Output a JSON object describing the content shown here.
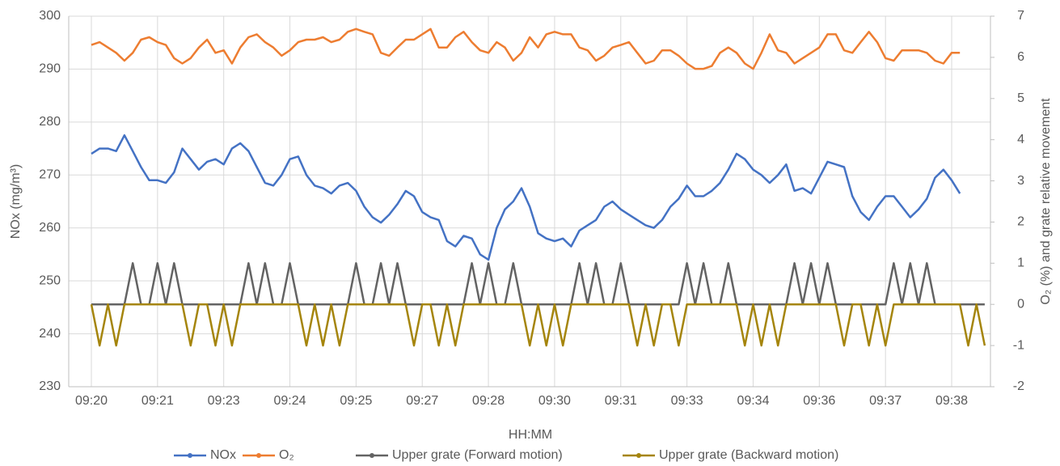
{
  "chart_data": {
    "type": "line",
    "xlabel": "HH:MM",
    "ylabel": "NOx (mg/m³)",
    "y2label": "O₂ (%) and grate relative movement",
    "categories": [
      "09:20",
      null,
      null,
      null,
      null,
      null,
      null,
      null,
      "09:21",
      null,
      null,
      null,
      null,
      null,
      null,
      null,
      "09:23",
      null,
      null,
      null,
      null,
      null,
      null,
      null,
      "09:24",
      null,
      null,
      null,
      null,
      null,
      null,
      null,
      "09:25",
      null,
      null,
      null,
      null,
      null,
      null,
      null,
      "09:27",
      null,
      null,
      null,
      null,
      null,
      null,
      null,
      "09:28",
      null,
      null,
      null,
      null,
      null,
      null,
      null,
      "09:30",
      null,
      null,
      null,
      null,
      null,
      null,
      null,
      "09:31",
      null,
      null,
      null,
      null,
      null,
      null,
      null,
      "09:33",
      null,
      null,
      null,
      null,
      null,
      null,
      null,
      "09:34",
      null,
      null,
      null,
      null,
      null,
      null,
      null,
      "09:36",
      null,
      null,
      null,
      null,
      null,
      null,
      null,
      "09:37",
      null,
      null,
      null,
      null,
      null,
      null,
      null,
      "09:38",
      null,
      null,
      null,
      null
    ],
    "ylim": [
      230,
      300
    ],
    "yticks": [
      230,
      240,
      250,
      260,
      270,
      280,
      290,
      300
    ],
    "y2lim": [
      -2,
      7
    ],
    "y2ticks": [
      -2,
      -1,
      0,
      1,
      2,
      3,
      4,
      5,
      6,
      7
    ],
    "grid": true,
    "legend": "bottom",
    "series": [
      {
        "name": "NOx",
        "color": "#4472c4",
        "values": [
          274,
          275,
          275,
          274.5,
          277.5,
          274.5,
          271.5,
          269,
          269,
          268.5,
          270.5,
          275,
          273,
          271,
          272.5,
          273,
          272,
          275,
          276,
          274.5,
          271.5,
          268.5,
          268,
          270,
          273,
          273.5,
          270,
          268,
          267.5,
          266.5,
          268,
          268.5,
          267,
          264,
          262,
          261,
          262.5,
          264.5,
          267,
          266,
          263,
          262,
          261.5,
          257.5,
          256.5,
          258.5,
          258,
          255,
          254,
          260,
          263.5,
          265,
          267.5,
          264,
          259,
          258,
          257.5,
          258,
          256.5,
          259.5,
          260.5,
          261.5,
          264,
          265,
          263.5,
          262.5,
          261.5,
          260.5,
          260,
          261.5,
          264,
          265.5,
          268,
          266,
          266,
          267,
          268.5,
          271,
          274,
          273,
          271,
          270,
          268.5,
          270,
          272,
          267,
          267.5,
          266.5,
          269.5,
          272.5,
          272,
          271.5,
          266,
          263,
          261.5,
          264,
          266,
          266,
          264,
          262,
          263.5,
          265.5,
          269.5,
          271,
          269,
          266.5,
          null,
          null,
          null
        ]
      },
      {
        "name": "O₂",
        "color": "#ed7d31",
        "axis": "y2",
        "values": [
          6.3,
          6.37,
          6.24,
          6.11,
          5.92,
          6.11,
          6.43,
          6.49,
          6.37,
          6.3,
          5.98,
          5.85,
          5.98,
          6.24,
          6.43,
          6.11,
          6.17,
          5.85,
          6.24,
          6.49,
          6.56,
          6.37,
          6.24,
          6.04,
          6.17,
          6.37,
          6.43,
          6.43,
          6.49,
          6.37,
          6.43,
          6.62,
          6.69,
          6.62,
          6.56,
          6.11,
          6.04,
          6.24,
          6.43,
          6.43,
          6.56,
          6.69,
          6.24,
          6.24,
          6.49,
          6.62,
          6.37,
          6.17,
          6.11,
          6.37,
          6.24,
          5.92,
          6.11,
          6.49,
          6.24,
          6.56,
          6.62,
          6.56,
          6.56,
          6.24,
          6.17,
          5.92,
          6.04,
          6.24,
          6.3,
          6.37,
          6.11,
          5.85,
          5.92,
          6.17,
          6.17,
          6.04,
          5.85,
          5.72,
          5.72,
          5.79,
          6.11,
          6.24,
          6.11,
          5.85,
          5.72,
          6.11,
          6.56,
          6.17,
          6.11,
          5.85,
          5.98,
          6.11,
          6.24,
          6.56,
          6.56,
          6.17,
          6.11,
          6.37,
          6.62,
          6.37,
          5.98,
          5.92,
          6.17,
          6.17,
          6.17,
          6.11,
          5.92,
          5.85,
          6.11,
          6.11,
          null,
          null,
          null
        ]
      },
      {
        "name": "Upper grate (Forward motion)",
        "color": "#636363",
        "axis": "y2",
        "values": [
          0,
          0,
          0,
          0,
          0,
          1,
          0,
          0,
          1,
          0,
          1,
          0,
          0,
          0,
          0,
          0,
          0,
          0,
          0,
          1,
          0,
          1,
          0,
          0,
          1,
          0,
          0,
          0,
          0,
          0,
          0,
          0,
          1,
          0,
          0,
          1,
          0,
          1,
          0,
          0,
          0,
          0,
          0,
          0,
          0,
          0,
          1,
          0,
          1,
          0,
          0,
          1,
          0,
          0,
          0,
          0,
          0,
          0,
          0,
          1,
          0,
          1,
          0,
          0,
          1,
          0,
          0,
          0,
          0,
          0,
          0,
          0,
          1,
          0,
          1,
          0,
          0,
          1,
          0,
          0,
          0,
          0,
          0,
          0,
          0,
          1,
          0,
          1,
          0,
          1,
          0,
          0,
          0,
          0,
          0,
          0,
          0,
          1,
          0,
          1,
          0,
          1,
          0,
          0,
          0,
          0,
          0,
          0,
          0
        ]
      },
      {
        "name": "Upper grate (Backward motion)",
        "color": "#a5850d",
        "axis": "y2",
        "values": [
          0,
          -1,
          0,
          -1,
          0,
          0,
          0,
          0,
          0,
          0,
          0,
          0,
          -1,
          0,
          0,
          -1,
          0,
          -1,
          0,
          0,
          0,
          0,
          0,
          0,
          0,
          0,
          -1,
          0,
          -1,
          0,
          -1,
          0,
          0,
          0,
          0,
          0,
          0,
          0,
          0,
          -1,
          0,
          0,
          -1,
          0,
          -1,
          0,
          0,
          0,
          0,
          0,
          0,
          0,
          0,
          -1,
          0,
          -1,
          0,
          -1,
          0,
          0,
          0,
          0,
          0,
          0,
          0,
          0,
          -1,
          0,
          -1,
          0,
          0,
          -1,
          0,
          0,
          0,
          0,
          0,
          0,
          0,
          -1,
          0,
          -1,
          0,
          -1,
          0,
          0,
          0,
          0,
          0,
          0,
          0,
          -1,
          0,
          0,
          -1,
          0,
          -1,
          0,
          0,
          0,
          0,
          0,
          0,
          0,
          0,
          0,
          -1,
          0,
          -1
        ]
      }
    ]
  }
}
